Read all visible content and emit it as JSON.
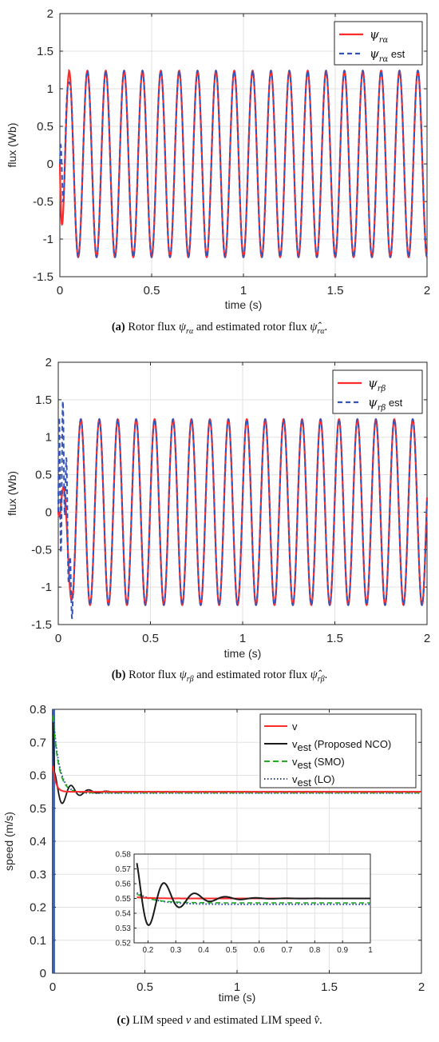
{
  "chart_data": [
    {
      "type": "line",
      "panel": "a",
      "xlabel": "time (s)",
      "ylabel": "flux (Wb)",
      "xlim": [
        0,
        2
      ],
      "ylim": [
        -1.5,
        2
      ],
      "x_ticks": [
        "0",
        "0.5",
        "1",
        "1.5",
        "2"
      ],
      "y_ticks": [
        "-1.5",
        "-1",
        "-0.5",
        "0",
        "0.5",
        "1",
        "1.5",
        "2"
      ],
      "grid": true,
      "legend_position": "top-right",
      "series": [
        {
          "name": "ψ_rα",
          "style": "solid",
          "color": "#ff2a2a",
          "amplitude": 1.24,
          "frequency_hz": 10,
          "cycles": 20,
          "x_range": [
            0,
            2
          ]
        },
        {
          "name": "ψ_rα est",
          "style": "dashed",
          "color": "#3355bb",
          "amplitude": 1.24,
          "frequency_hz": 10,
          "cycles": 20,
          "x_range": [
            0,
            2
          ],
          "transient_peak": 0.77
        }
      ],
      "caption": {
        "label": "(a)",
        "text": "Rotor flux",
        "sym": "ψ",
        "sub": "rα",
        "mid": "and estimated rotor flux",
        "sym2": "ψ̂",
        "sub2": "rα",
        "end": "."
      }
    },
    {
      "type": "line",
      "panel": "b",
      "xlabel": "time (s)",
      "ylabel": "flux (Wb)",
      "xlim": [
        0,
        2
      ],
      "ylim": [
        -1.5,
        2
      ],
      "x_ticks": [
        "0",
        "0.5",
        "1",
        "1.5",
        "2"
      ],
      "y_ticks": [
        "-1.5",
        "-1",
        "-0.5",
        "0",
        "0.5",
        "1",
        "1.5",
        "2"
      ],
      "grid": true,
      "legend_position": "top-right",
      "series": [
        {
          "name": "ψ_rβ",
          "style": "solid",
          "color": "#ff2a2a",
          "amplitude": 1.24,
          "frequency_hz": 10,
          "cycles": 20,
          "x_range": [
            0,
            2
          ],
          "transient_min": -0.87
        },
        {
          "name": "ψ_rβ est",
          "style": "dashed",
          "color": "#3355bb",
          "amplitude": 1.24,
          "frequency_hz": 10,
          "cycles": 20,
          "x_range": [
            0,
            2
          ],
          "transient_peak": 1.38
        }
      ],
      "caption": {
        "label": "(b)",
        "text": "Rotor flux",
        "sym": "ψ",
        "sub": "rβ",
        "mid": "and estimated rotor flux",
        "sym2": "ψ̂",
        "sub2": "rβ",
        "end": "."
      }
    },
    {
      "type": "line",
      "panel": "c",
      "xlabel": "time (s)",
      "ylabel": "speed (m/s)",
      "xlim": [
        0,
        2
      ],
      "ylim": [
        0,
        0.8
      ],
      "x_ticks": [
        "0",
        "0.5",
        "1",
        "1.5",
        "2"
      ],
      "y_ticks": [
        "0",
        "0.1",
        "0.2",
        "0.3",
        "0.4",
        "0.5",
        "0.6",
        "0.7",
        "0.8"
      ],
      "grid": true,
      "legend_position": "top-right",
      "series": [
        {
          "name": "v",
          "style": "solid",
          "color": "#ff2a2a",
          "final": 0.55
        },
        {
          "name": "v_est (Proposed NCO)",
          "legend_main": "v",
          "legend_sub": "est",
          "legend_rest": " (Proposed NCO)",
          "style": "solid",
          "color": "#1a1a1a",
          "final": 0.55,
          "undershoot": 0.495
        },
        {
          "name": "v_est (SMO)",
          "legend_main": "v",
          "legend_sub": "est",
          "legend_rest": " (SMO)",
          "style": "dashed",
          "color": "#22aa22",
          "final": 0.547
        },
        {
          "name": "v_est (LO)",
          "legend_main": "v",
          "legend_sub": "est",
          "legend_rest": " (LO)",
          "style": "dotted",
          "color": "#2244aa",
          "final": 0.546
        }
      ],
      "inset": {
        "xlim": [
          0.15,
          1
        ],
        "ylim": [
          0.52,
          0.58
        ],
        "x_ticks": [
          "0.2",
          "0.3",
          "0.4",
          "0.5",
          "0.6",
          "0.7",
          "0.8",
          "0.9",
          "1"
        ],
        "y_ticks": [
          "0.52",
          "0.53",
          "0.54",
          "0.55",
          "0.56",
          "0.57",
          "0.58"
        ]
      },
      "caption": {
        "label": "(c)",
        "text": "LIM speed",
        "sym": "v",
        "mid": "and estimated LIM speed",
        "sym2": "v̂",
        "end": "."
      }
    }
  ]
}
